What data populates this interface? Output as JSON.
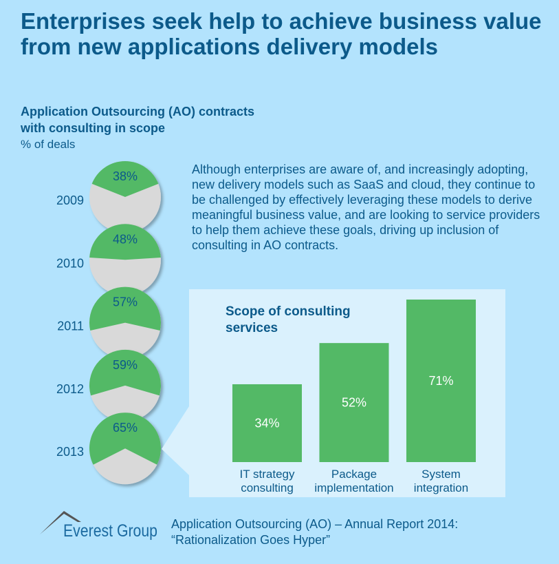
{
  "title": "Enterprises seek help to achieve business value from new applications delivery models",
  "subtitle": "Application Outsourcing (AO) contracts with consulting in scope",
  "unit": "% of deals",
  "body_text": "Although enterprises are aware of, and increasingly adopting, new delivery models such as SaaS and cloud, they continue to be challenged by effectively leveraging these models to derive meaningful business value, and are looking to service providers to help them achieve these goals, driving up inclusion of consulting in AO contracts.",
  "footer": {
    "line1": "Application Outsourcing (AO) – Annual Report 2014:",
    "line2": "“Rationalization Goes Hyper”"
  },
  "logo": {
    "text": "Everest Group"
  },
  "colors": {
    "background": "#b3e3fd",
    "green": "#53b966",
    "grey": "#d9d9d9",
    "text": "#0c5a8a",
    "panel": "#daf1fd"
  },
  "chart_data": [
    {
      "type": "pie",
      "categories": [
        "2009",
        "2010",
        "2011",
        "2012",
        "2013"
      ],
      "values": [
        38,
        48,
        57,
        59,
        65
      ],
      "labels": [
        "38%",
        "48%",
        "57%",
        "59%",
        "65%"
      ]
    },
    {
      "type": "bar",
      "title": "Scope of consulting services",
      "categories": [
        "IT strategy consulting",
        "Package implementation",
        "System integration"
      ],
      "category_lines": [
        [
          "IT strategy",
          "consulting"
        ],
        [
          "Package",
          "implementation"
        ],
        [
          "System",
          "integration"
        ]
      ],
      "values": [
        34,
        52,
        71
      ],
      "labels": [
        "34%",
        "52%",
        "71%"
      ],
      "ylim": [
        0,
        71
      ]
    }
  ]
}
